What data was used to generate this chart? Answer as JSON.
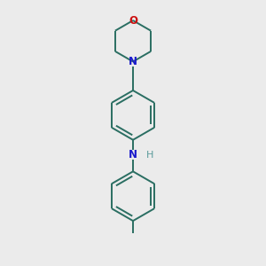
{
  "bg_color": "#ebebeb",
  "bond_color": "#2a6e62",
  "N_color": "#1a1acc",
  "O_color": "#cc1010",
  "H_color": "#5a9a9a",
  "line_width": 1.4,
  "dpi": 100,
  "figsize": [
    3.0,
    3.0
  ],
  "xlim": [
    0.15,
    0.85
  ],
  "ylim": [
    0.02,
    0.98
  ]
}
